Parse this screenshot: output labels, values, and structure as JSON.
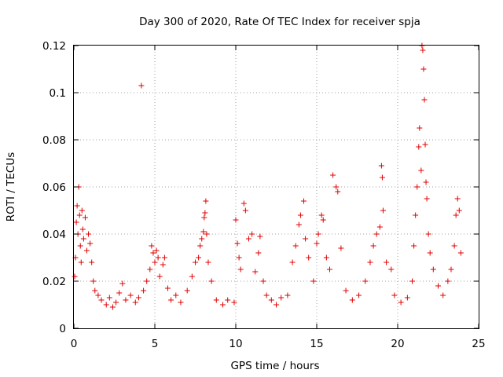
{
  "chart_data": {
    "type": "scatter",
    "title": "Day 300 of 2020, Rate Of TEC Index for receiver spja",
    "xlabel": "GPS time / hours",
    "ylabel": "ROTI / TECUs",
    "xlim": [
      0,
      25
    ],
    "ylim": [
      0,
      0.12
    ],
    "xticks": [
      0,
      5,
      10,
      15,
      20,
      25
    ],
    "yticks": [
      0,
      0.02,
      0.04,
      0.06,
      0.08,
      0.1,
      0.12
    ],
    "xtick_labels": [
      "0",
      "5",
      "10",
      "15",
      "20",
      "25"
    ],
    "ytick_labels": [
      "0",
      "0.02",
      "0.04",
      "0.06",
      "0.08",
      "0.1",
      "0.12"
    ],
    "grid": true,
    "marker": "+",
    "color": "#e00000",
    "series": [
      {
        "name": "ROTI",
        "points": [
          [
            0.05,
            0.022
          ],
          [
            0.1,
            0.03
          ],
          [
            0.15,
            0.045
          ],
          [
            0.2,
            0.052
          ],
          [
            0.25,
            0.04
          ],
          [
            0.3,
            0.06
          ],
          [
            0.35,
            0.048
          ],
          [
            0.4,
            0.035
          ],
          [
            0.45,
            0.028
          ],
          [
            0.5,
            0.05
          ],
          [
            0.55,
            0.042
          ],
          [
            0.6,
            0.038
          ],
          [
            0.7,
            0.047
          ],
          [
            0.8,
            0.033
          ],
          [
            0.9,
            0.04
          ],
          [
            1.0,
            0.036
          ],
          [
            1.1,
            0.028
          ],
          [
            1.2,
            0.02
          ],
          [
            1.3,
            0.016
          ],
          [
            1.5,
            0.014
          ],
          [
            1.7,
            0.012
          ],
          [
            2.0,
            0.01
          ],
          [
            2.2,
            0.013
          ],
          [
            2.4,
            0.009
          ],
          [
            2.6,
            0.011
          ],
          [
            2.8,
            0.015
          ],
          [
            3.0,
            0.019
          ],
          [
            3.2,
            0.012
          ],
          [
            3.5,
            0.014
          ],
          [
            3.8,
            0.011
          ],
          [
            4.0,
            0.013
          ],
          [
            4.17,
            0.103
          ],
          [
            4.3,
            0.016
          ],
          [
            4.5,
            0.02
          ],
          [
            4.7,
            0.025
          ],
          [
            4.8,
            0.035
          ],
          [
            4.9,
            0.032
          ],
          [
            5.0,
            0.028
          ],
          [
            5.1,
            0.033
          ],
          [
            5.2,
            0.03
          ],
          [
            5.3,
            0.022
          ],
          [
            5.5,
            0.027
          ],
          [
            5.6,
            0.03
          ],
          [
            5.8,
            0.017
          ],
          [
            6.0,
            0.012
          ],
          [
            6.3,
            0.014
          ],
          [
            6.6,
            0.011
          ],
          [
            7.0,
            0.016
          ],
          [
            7.3,
            0.022
          ],
          [
            7.5,
            0.028
          ],
          [
            7.7,
            0.03
          ],
          [
            7.8,
            0.035
          ],
          [
            7.9,
            0.038
          ],
          [
            8.0,
            0.041
          ],
          [
            8.05,
            0.047
          ],
          [
            8.1,
            0.049
          ],
          [
            8.15,
            0.054
          ],
          [
            8.2,
            0.04
          ],
          [
            8.3,
            0.028
          ],
          [
            8.5,
            0.02
          ],
          [
            8.8,
            0.012
          ],
          [
            9.2,
            0.01
          ],
          [
            9.5,
            0.012
          ],
          [
            9.9,
            0.011
          ],
          [
            10.0,
            0.046
          ],
          [
            10.1,
            0.036
          ],
          [
            10.2,
            0.03
          ],
          [
            10.3,
            0.025
          ],
          [
            10.5,
            0.053
          ],
          [
            10.6,
            0.05
          ],
          [
            10.8,
            0.038
          ],
          [
            11.0,
            0.04
          ],
          [
            11.2,
            0.024
          ],
          [
            11.4,
            0.032
          ],
          [
            11.5,
            0.039
          ],
          [
            11.7,
            0.02
          ],
          [
            11.9,
            0.014
          ],
          [
            12.2,
            0.012
          ],
          [
            12.5,
            0.01
          ],
          [
            12.8,
            0.013
          ],
          [
            13.2,
            0.014
          ],
          [
            13.5,
            0.028
          ],
          [
            13.7,
            0.035
          ],
          [
            13.9,
            0.044
          ],
          [
            14.0,
            0.048
          ],
          [
            14.2,
            0.054
          ],
          [
            14.3,
            0.038
          ],
          [
            14.5,
            0.03
          ],
          [
            14.8,
            0.02
          ],
          [
            15.0,
            0.036
          ],
          [
            15.1,
            0.04
          ],
          [
            15.3,
            0.048
          ],
          [
            15.4,
            0.046
          ],
          [
            15.6,
            0.03
          ],
          [
            15.8,
            0.025
          ],
          [
            16.0,
            0.065
          ],
          [
            16.2,
            0.06
          ],
          [
            16.3,
            0.058
          ],
          [
            16.5,
            0.034
          ],
          [
            16.8,
            0.016
          ],
          [
            17.2,
            0.012
          ],
          [
            17.6,
            0.014
          ],
          [
            18.0,
            0.02
          ],
          [
            18.3,
            0.028
          ],
          [
            18.5,
            0.035
          ],
          [
            18.7,
            0.04
          ],
          [
            18.9,
            0.043
          ],
          [
            19.0,
            0.069
          ],
          [
            19.05,
            0.064
          ],
          [
            19.1,
            0.05
          ],
          [
            19.3,
            0.028
          ],
          [
            19.6,
            0.025
          ],
          [
            19.8,
            0.014
          ],
          [
            20.2,
            0.011
          ],
          [
            20.6,
            0.013
          ],
          [
            20.9,
            0.02
          ],
          [
            21.0,
            0.035
          ],
          [
            21.1,
            0.048
          ],
          [
            21.2,
            0.06
          ],
          [
            21.3,
            0.077
          ],
          [
            21.35,
            0.085
          ],
          [
            21.45,
            0.067
          ],
          [
            21.5,
            0.12
          ],
          [
            21.55,
            0.118
          ],
          [
            21.6,
            0.11
          ],
          [
            21.65,
            0.097
          ],
          [
            21.7,
            0.078
          ],
          [
            21.75,
            0.062
          ],
          [
            21.8,
            0.055
          ],
          [
            21.9,
            0.04
          ],
          [
            22.0,
            0.032
          ],
          [
            22.2,
            0.025
          ],
          [
            22.5,
            0.018
          ],
          [
            22.8,
            0.014
          ],
          [
            23.1,
            0.02
          ],
          [
            23.3,
            0.025
          ],
          [
            23.5,
            0.035
          ],
          [
            23.6,
            0.048
          ],
          [
            23.7,
            0.055
          ],
          [
            23.8,
            0.05
          ],
          [
            23.9,
            0.032
          ]
        ]
      }
    ]
  }
}
